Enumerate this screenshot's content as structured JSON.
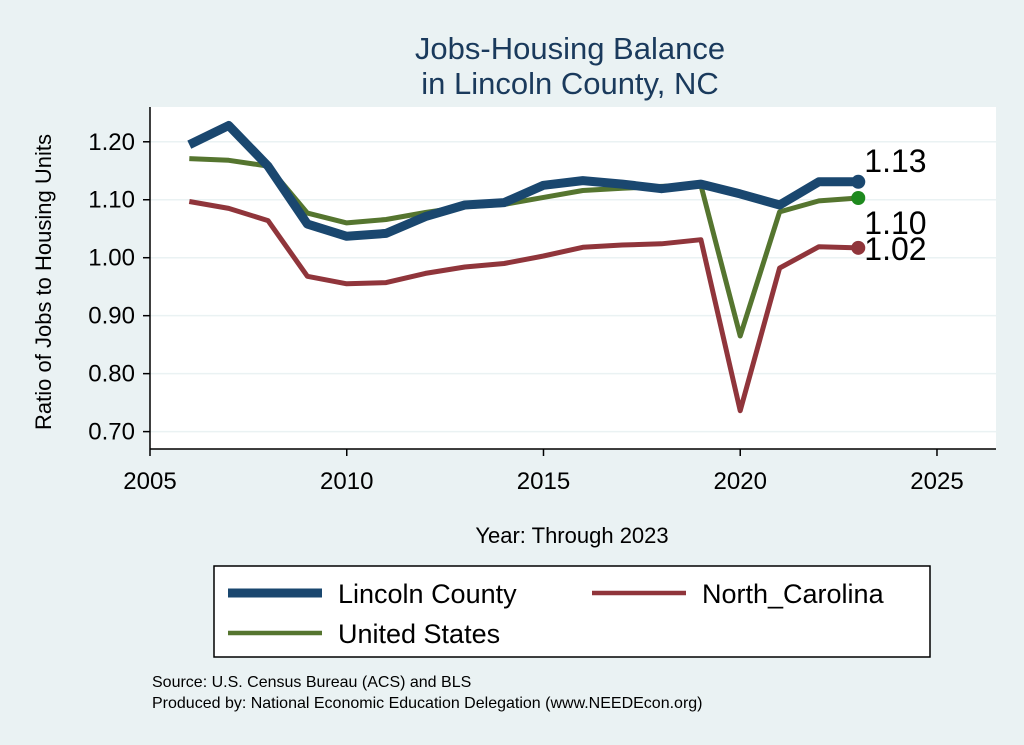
{
  "chart_data": {
    "type": "line",
    "title": [
      "Jobs-Housing Balance",
      "in Lincoln County, NC"
    ],
    "xlabel": "Year: Through 2023",
    "ylabel": "Ratio of Jobs to Housing Units",
    "xlim": [
      2005,
      2026.5
    ],
    "ylim": [
      0.67,
      1.26
    ],
    "xticks": [
      2005,
      2010,
      2015,
      2020,
      2025
    ],
    "yticks": [
      0.7,
      0.8,
      0.9,
      1.0,
      1.1,
      1.2
    ],
    "ytick_labels": [
      "0.70",
      "0.80",
      "0.90",
      "1.00",
      "1.10",
      "1.20"
    ],
    "grid": true,
    "legend_position": "bottom",
    "x": [
      2006,
      2007,
      2008,
      2009,
      2010,
      2011,
      2012,
      2013,
      2014,
      2015,
      2016,
      2017,
      2018,
      2019,
      2020,
      2021,
      2022,
      2023
    ],
    "series": [
      {
        "name": "Lincoln County",
        "color": "#1a476f",
        "values": [
          1.195,
          1.228,
          1.158,
          1.058,
          1.037,
          1.042,
          1.071,
          1.091,
          1.095,
          1.125,
          1.133,
          1.127,
          1.119,
          1.127,
          1.11,
          1.091,
          1.131,
          1.131
        ],
        "end_label": "1.13"
      },
      {
        "name": "North_Carolina",
        "color": "#90353b",
        "values": [
          1.097,
          1.085,
          1.064,
          0.968,
          0.955,
          0.957,
          0.973,
          0.984,
          0.99,
          1.003,
          1.018,
          1.022,
          1.024,
          1.031,
          0.736,
          0.982,
          1.019,
          1.017
        ],
        "end_label": "1.02"
      },
      {
        "name": "United States",
        "color": "#55752f",
        "values": [
          1.171,
          1.168,
          1.158,
          1.077,
          1.06,
          1.066,
          1.078,
          1.088,
          1.092,
          1.104,
          1.116,
          1.12,
          1.123,
          1.125,
          0.865,
          1.079,
          1.098,
          1.103
        ],
        "end_label": "1.10"
      }
    ],
    "source": [
      "Source: U.S. Census Bureau (ACS) and BLS",
      "Produced by: National Economic Education Delegation (www.NEEDEcon.org)"
    ]
  }
}
